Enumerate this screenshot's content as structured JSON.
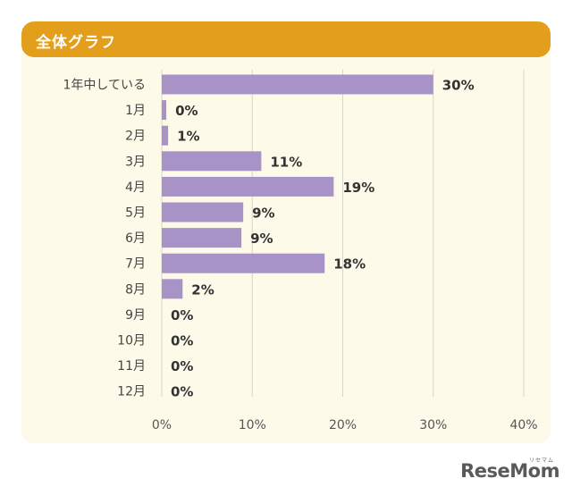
{
  "header": {
    "title": "全体グラフ"
  },
  "chart_data": {
    "type": "bar",
    "orientation": "horizontal",
    "title": "全体グラフ",
    "categories": [
      "1年中している",
      "1月",
      "2月",
      "3月",
      "4月",
      "5月",
      "6月",
      "7月",
      "8月",
      "9月",
      "10月",
      "11月",
      "12月"
    ],
    "values": [
      30,
      0.5,
      0.7,
      11,
      19,
      9,
      8.8,
      18,
      2.3,
      0,
      0,
      0,
      0
    ],
    "value_labels": [
      "30%",
      "0%",
      "1%",
      "11%",
      "19%",
      "9%",
      "9%",
      "18%",
      "2%",
      "0%",
      "0%",
      "0%",
      "0%"
    ],
    "xlim": [
      0,
      40
    ],
    "x_ticks": [
      0,
      10,
      20,
      30,
      40
    ],
    "x_tick_labels": [
      "0%",
      "10%",
      "20%",
      "30%",
      "40%"
    ],
    "grid": true,
    "bar_color": "#a893c6"
  },
  "watermark": {
    "logo": "ReseMom",
    "logo_small": "リセマム"
  },
  "colors": {
    "header_bg": "#e39e1b",
    "card_bg": "#fdfae9",
    "bar": "#a893c6",
    "grid": "#d9d6c8",
    "text": "#444444"
  }
}
